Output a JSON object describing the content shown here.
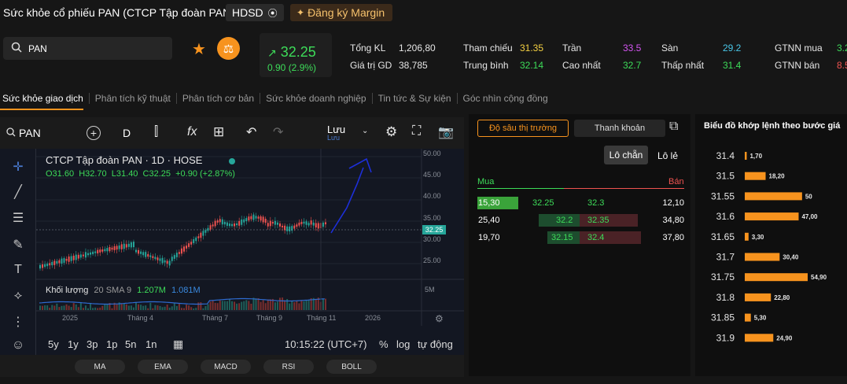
{
  "header": {
    "title": "Sức khỏe cổ phiếu PAN (CTCP Tập đoàn PAN)",
    "hdsd_label": "HDSD",
    "margin_label": "Đăng ký Margin"
  },
  "search": {
    "value": "PAN"
  },
  "price": {
    "current": "32.25",
    "change": "0.90 (2.9%)"
  },
  "stats": {
    "col1": [
      {
        "label": "Tổng KL",
        "value": "1,206,80"
      },
      {
        "label": "Giá trị GD",
        "value": "38,785"
      }
    ],
    "col2": [
      {
        "label": "Tham chiếu",
        "value": "31.35"
      },
      {
        "label": "Trung bình",
        "value": "32.14"
      }
    ],
    "col3": [
      {
        "label": "Trần",
        "value": "33.5"
      },
      {
        "label": "Cao nhất",
        "value": "32.7"
      }
    ],
    "col4": [
      {
        "label": "Sàn",
        "value": "29.2"
      },
      {
        "label": "Thấp nhất",
        "value": "31.4"
      }
    ],
    "col5": [
      {
        "label": "GTNN mua",
        "value": "3.2"
      },
      {
        "label": "GTNN bán",
        "value": "8.5"
      }
    ]
  },
  "tabs": [
    "Sức khỏe giao dịch",
    "Phân tích kỹ thuật",
    "Phân tích cơ bản",
    "Sức khỏe doanh nghiệp",
    "Tin tức & Sự kiện",
    "Góc nhìn cộng đồng"
  ],
  "chart_toolbar": {
    "symbol": "PAN",
    "interval": "D",
    "fx": "fx",
    "save": "Lưu",
    "save_sub": "Lưu"
  },
  "chart_legend": {
    "title": "CTCP Tập đoàn PAN · 1D · HOSE",
    "ohlc": "O31.60  H32.70  L31.40  C32.25  +0.90 (+2.87%)",
    "volume_label": "Khối lượng",
    "volume_sma": "20 SMA 9",
    "volume_v1": "1.207M",
    "volume_v2": "1.081M"
  },
  "chart_axes": {
    "price_ticks": [
      "50.00",
      "45.00",
      "40.00",
      "35.00",
      "30.00",
      "25.00"
    ],
    "current_price_tag": "32.25",
    "vol_tick": "5M",
    "time_ticks": [
      "2025",
      "Tháng 4",
      "Tháng 7",
      "Tháng 9",
      "Tháng 11",
      "2026"
    ]
  },
  "chart_bottom": {
    "ranges": [
      "5y",
      "1y",
      "3p",
      "1p",
      "5n",
      "1n"
    ],
    "clock": "10:15:22 (UTC+7)",
    "opts": [
      "%",
      "log",
      "tự động"
    ]
  },
  "indicators": [
    "MA",
    "EMA",
    "MACD",
    "RSI",
    "BOLL"
  ],
  "depth": {
    "btn_depth": "Độ sâu thị trường",
    "btn_liquidity": "Thanh khoản",
    "lot_even": "Lô chẵn",
    "lot_odd": "Lô lẻ",
    "buy_label": "Mua",
    "sell_label": "Bán",
    "rows": [
      {
        "buy_vol": "15,30",
        "buy_price": "32.25",
        "sell_price": "32.3",
        "sell_vol": "12,10"
      },
      {
        "buy_vol": "25,40",
        "buy_price": "32.2",
        "sell_price": "32.35",
        "sell_vol": "34,80"
      },
      {
        "buy_vol": "19,70",
        "buy_price": "32.15",
        "sell_price": "32.4",
        "sell_vol": "37,80"
      }
    ]
  },
  "chart_data": {
    "type": "bar",
    "title": "Biểu đồ khớp lệnh theo bước giá",
    "categories": [
      "31.4",
      "31.5",
      "31.55",
      "31.6",
      "31.65",
      "31.7",
      "31.75",
      "31.8",
      "31.85",
      "31.9"
    ],
    "values": [
      1.7,
      18.2,
      50,
      47.0,
      3.3,
      30.4,
      54.9,
      22.8,
      5.3,
      24.9
    ],
    "value_labels": [
      "1,70",
      "18,20",
      "50",
      "47,00",
      "3,30",
      "30,40",
      "54,90",
      "22,80",
      "5,30",
      "24,90"
    ],
    "bar_color": "#f7931e"
  },
  "colors": {
    "up": "#3ddc59",
    "down": "#ef5350",
    "accent": "#f7931e",
    "ceiling": "#d455f2",
    "floor": "#4ac7e8",
    "ref": "#f5d142"
  }
}
